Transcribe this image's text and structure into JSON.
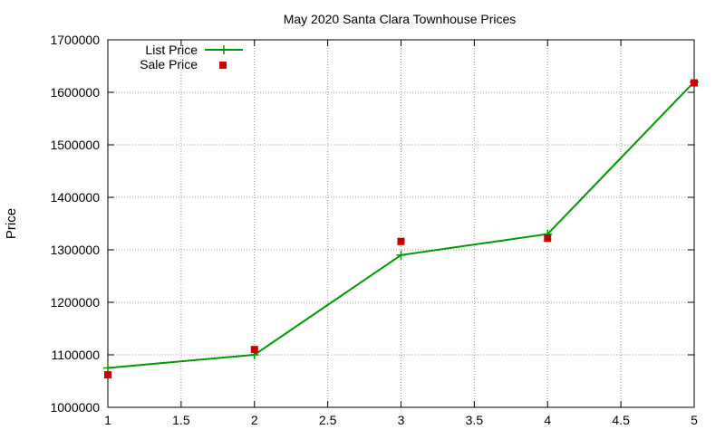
{
  "chart_data": {
    "type": "line",
    "title": "May 2020 Santa Clara Townhouse Prices",
    "xlabel": "",
    "ylabel": "Price",
    "xlim": [
      1,
      5
    ],
    "ylim": [
      1000000,
      1700000
    ],
    "x_ticks": [
      "1",
      "1.5",
      "2",
      "2.5",
      "3",
      "3.5",
      "4",
      "4.5",
      "5"
    ],
    "y_ticks": [
      "1000000",
      "1100000",
      "1200000",
      "1300000",
      "1400000",
      "1500000",
      "1600000",
      "1700000"
    ],
    "grid": true,
    "legend_position": "top-left",
    "series": [
      {
        "name": "List Price",
        "style": "line-with-plus-markers",
        "color": "#009900",
        "x": [
          1,
          2,
          3,
          4,
          5
        ],
        "y": [
          1075000,
          1100000,
          1290000,
          1330000,
          1620000
        ]
      },
      {
        "name": "Sale Price",
        "style": "square-markers",
        "color": "#cc0000",
        "x": [
          1,
          2,
          3,
          4,
          5
        ],
        "y": [
          1062000,
          1110000,
          1316000,
          1322000,
          1618000
        ]
      }
    ]
  }
}
